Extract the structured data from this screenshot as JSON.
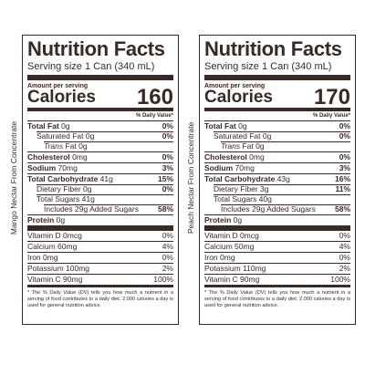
{
  "panels": [
    {
      "side_label": "Mango Nectar From Concentrate",
      "title": "Nutrition Facts",
      "serving": "Serving size 1 Can (340 mL)",
      "amount_per_serving": "Amount per serving",
      "calories_label": "Calories",
      "calories": "160",
      "dv_header": "% Daily Value*",
      "nutrients": [
        {
          "label_bold": "Total Fat",
          "amount": "0g",
          "pct": "0%"
        },
        {
          "label": "Saturated Fat",
          "amount": "0g",
          "pct": "0%"
        },
        {
          "label_italic": "Trans",
          "label": "Fat",
          "amount": "0g",
          "pct": ""
        },
        {
          "label_bold": "Cholesterol",
          "amount": "0mg",
          "pct": "0%"
        },
        {
          "label_bold": "Sodium",
          "amount": "70mg",
          "pct": "3%"
        },
        {
          "label_bold": "Total Carbohydrate",
          "amount": "41g",
          "pct": "15%"
        },
        {
          "label": "Dietary Fiber",
          "amount": "0g",
          "pct": "0%"
        },
        {
          "label": "Total Sugars",
          "amount": "41g",
          "pct": ""
        },
        {
          "label": "Includes 29g Added Sugars",
          "amount": "",
          "pct": "58%"
        },
        {
          "label_bold": "Protein",
          "amount": "0g",
          "pct": ""
        }
      ],
      "vitamins": [
        {
          "label": "Vitamin D 0mcg",
          "pct": "0%"
        },
        {
          "label": "Calcium 60mg",
          "pct": "4%"
        },
        {
          "label": "Iron 0mg",
          "pct": "0%"
        },
        {
          "label": "Potassium 100mg",
          "pct": "2%"
        },
        {
          "label": "Vitamin C 90mg",
          "pct": "100%"
        }
      ],
      "footnote": "* The % Daily Value (DV) tells you how much a nutrient in a serving of food contributes to a daily diet. 2,000 calories a day is used for general nutrition advice."
    },
    {
      "side_label": "Peach Nectar From Concentrate",
      "title": "Nutrition Facts",
      "serving": "Serving size 1 Can (340 mL)",
      "amount_per_serving": "Amount per serving",
      "calories_label": "Calories",
      "calories": "170",
      "dv_header": "% Daily Value*",
      "nutrients": [
        {
          "label_bold": "Total Fat",
          "amount": "0g",
          "pct": "0%"
        },
        {
          "label": "Saturated Fat",
          "amount": "0g",
          "pct": "0%"
        },
        {
          "label_italic": "Trans",
          "label": "Fat",
          "amount": "0g",
          "pct": ""
        },
        {
          "label_bold": "Cholesterol",
          "amount": "0mg",
          "pct": "0%"
        },
        {
          "label_bold": "Sodium",
          "amount": "70mg",
          "pct": "3%"
        },
        {
          "label_bold": "Total Carbohydrate",
          "amount": "43g",
          "pct": "16%"
        },
        {
          "label": "Dietary Fiber",
          "amount": "3g",
          "pct": "11%"
        },
        {
          "label": "Total Sugars",
          "amount": "40g",
          "pct": ""
        },
        {
          "label": "Includes 29g Added Sugars",
          "amount": "",
          "pct": "58%"
        },
        {
          "label_bold": "Protein",
          "amount": "0g",
          "pct": ""
        }
      ],
      "vitamins": [
        {
          "label": "Vitamin D 0mcg",
          "pct": "0%"
        },
        {
          "label": "Calcium 50mg",
          "pct": "4%"
        },
        {
          "label": "Iron 0mg",
          "pct": "0%"
        },
        {
          "label": "Potassium 110mg",
          "pct": "2%"
        },
        {
          "label": "Vitamin C 90mg",
          "pct": "100%"
        }
      ],
      "footnote": "* The % Daily Value (DV) tells you how much a nutrient in a serving of food contributes to a daily diet. 2,000 calories a day is used for general nutrition advice."
    }
  ]
}
